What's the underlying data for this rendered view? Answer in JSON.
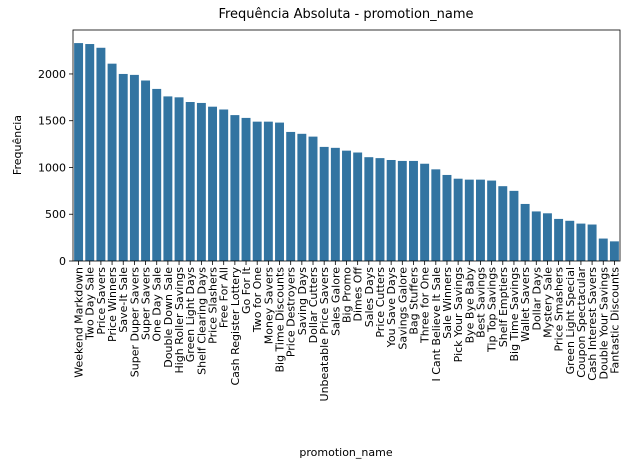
{
  "chart_data": {
    "type": "bar",
    "title": "Frequência Absoluta - promotion_name",
    "xlabel": "promotion_name",
    "ylabel": "Frequência",
    "color": "#3274a1",
    "categories": [
      "Weekend Markdown",
      "Two Day Sale",
      "Price Savers",
      "Price Winners",
      "Save-It Sale",
      "Super Duper Savers",
      "Super Savers",
      "One Day Sale",
      "Double Down Sale",
      "High Roller Savings",
      "Green Light Days",
      "Shelf Clearing Days",
      "Price Slashers",
      "Free For All",
      "Cash Register Lottery",
      "Go For It",
      "Two for One",
      "Money Savers",
      "Big Time Discounts",
      "Price Destroyers",
      "Saving Days",
      "Dollar Cutters",
      "Unbeatable Price Savers",
      "Sales Galore",
      "Big Promo",
      "Dimes Off",
      "Sales Days",
      "Price Cutters",
      "You Save Days",
      "Savings Galore",
      "Bag Stuffers",
      "Three for One",
      "I Cant Believe It Sale",
      "Sale Winners",
      "Pick Your Savings",
      "Bye Bye Baby",
      "Best Savings",
      "Tip Top Savings",
      "Shelf Emptiers",
      "Big Time Savings",
      "Wallet Savers",
      "Dollar Days",
      "Mystery Sale",
      "Price Smashers",
      "Green Light Special",
      "Coupon Spectacular",
      "Cash Interest Savers",
      "Double Your Savings",
      "Fantastic Discounts"
    ],
    "values": [
      2330,
      2320,
      2280,
      2110,
      2000,
      1990,
      1930,
      1840,
      1760,
      1750,
      1700,
      1690,
      1650,
      1620,
      1560,
      1530,
      1490,
      1490,
      1480,
      1380,
      1360,
      1330,
      1220,
      1210,
      1180,
      1160,
      1110,
      1100,
      1080,
      1070,
      1070,
      1040,
      980,
      920,
      880,
      870,
      870,
      860,
      800,
      750,
      610,
      530,
      510,
      450,
      430,
      400,
      390,
      240,
      210
    ],
    "ylim": [
      0,
      2470
    ],
    "yticks": [
      0,
      500,
      1000,
      1500,
      2000
    ]
  }
}
